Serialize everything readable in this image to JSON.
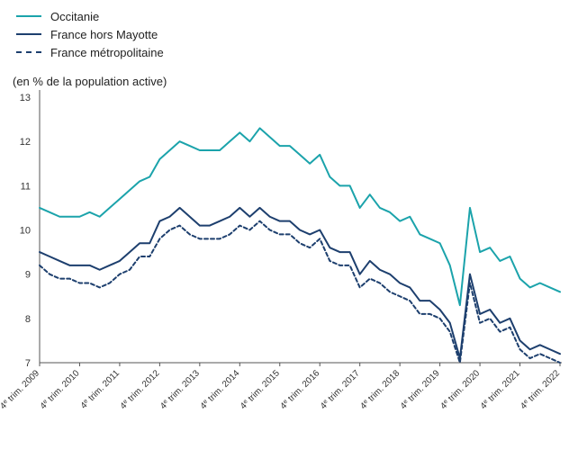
{
  "chart_data": {
    "type": "line",
    "ylabel": "(en % de la population active)",
    "ylim": [
      7,
      13
    ],
    "yticks": [
      7,
      8,
      9,
      10,
      11,
      12,
      13
    ],
    "grid": false,
    "legend_position": "top-left",
    "x": [
      "2009-Q4",
      "2010-Q1",
      "2010-Q2",
      "2010-Q3",
      "2010-Q4",
      "2011-Q1",
      "2011-Q2",
      "2011-Q3",
      "2011-Q4",
      "2012-Q1",
      "2012-Q2",
      "2012-Q3",
      "2012-Q4",
      "2013-Q1",
      "2013-Q2",
      "2013-Q3",
      "2013-Q4",
      "2014-Q1",
      "2014-Q2",
      "2014-Q3",
      "2014-Q4",
      "2015-Q1",
      "2015-Q2",
      "2015-Q3",
      "2015-Q4",
      "2016-Q1",
      "2016-Q2",
      "2016-Q3",
      "2016-Q4",
      "2017-Q1",
      "2017-Q2",
      "2017-Q3",
      "2017-Q4",
      "2018-Q1",
      "2018-Q2",
      "2018-Q3",
      "2018-Q4",
      "2019-Q1",
      "2019-Q2",
      "2019-Q3",
      "2019-Q4",
      "2020-Q1",
      "2020-Q2",
      "2020-Q3",
      "2020-Q4",
      "2021-Q1",
      "2021-Q2",
      "2021-Q3",
      "2021-Q4",
      "2022-Q1",
      "2022-Q2",
      "2022-Q3",
      "2022-Q4"
    ],
    "xtick_labels": [
      {
        "x": "2009-Q4",
        "pre": "4",
        "sup": "e",
        "post": " trim. 2009"
      },
      {
        "x": "2010-Q4",
        "pre": "4",
        "sup": "e",
        "post": " trim. 2010"
      },
      {
        "x": "2011-Q4",
        "pre": "4",
        "sup": "e",
        "post": " trim. 2011"
      },
      {
        "x": "2012-Q4",
        "pre": "4",
        "sup": "e",
        "post": " trim. 2012"
      },
      {
        "x": "2013-Q4",
        "pre": "4",
        "sup": "e",
        "post": " trim. 2013"
      },
      {
        "x": "2014-Q4",
        "pre": "4",
        "sup": "e",
        "post": " trim. 2014"
      },
      {
        "x": "2015-Q4",
        "pre": "4",
        "sup": "e",
        "post": " trim. 2015"
      },
      {
        "x": "2016-Q4",
        "pre": "4",
        "sup": "e",
        "post": " trim. 2016"
      },
      {
        "x": "2017-Q4",
        "pre": "4",
        "sup": "e",
        "post": " trim. 2017"
      },
      {
        "x": "2018-Q4",
        "pre": "4",
        "sup": "e",
        "post": " trim. 2018"
      },
      {
        "x": "2019-Q4",
        "pre": "4",
        "sup": "e",
        "post": " trim. 2019"
      },
      {
        "x": "2020-Q4",
        "pre": "4",
        "sup": "e",
        "post": " trim. 2020"
      },
      {
        "x": "2021-Q4",
        "pre": "4",
        "sup": "e",
        "post": " trim. 2021"
      },
      {
        "x": "2022-Q4",
        "pre": "4",
        "sup": "e",
        "post": " trim. 2022"
      }
    ],
    "series": [
      {
        "name": "Occitanie",
        "color": "#1ba3ab",
        "style": "solid",
        "values": [
          10.5,
          10.4,
          10.3,
          10.3,
          10.3,
          10.4,
          10.3,
          10.5,
          10.7,
          10.9,
          11.1,
          11.2,
          11.6,
          11.8,
          12.0,
          11.9,
          11.8,
          11.8,
          11.8,
          12.0,
          12.2,
          12.0,
          12.3,
          12.1,
          11.9,
          11.9,
          11.7,
          11.5,
          11.7,
          11.2,
          11.0,
          11.0,
          10.5,
          10.8,
          10.5,
          10.4,
          10.2,
          10.3,
          9.9,
          9.8,
          9.7,
          9.2,
          8.3,
          10.5,
          9.5,
          9.6,
          9.3,
          9.4,
          8.9,
          8.7,
          8.8,
          8.7,
          8.6
        ]
      },
      {
        "name": "France hors Mayotte",
        "color": "#1d3f6e",
        "style": "solid",
        "values": [
          9.5,
          9.4,
          9.3,
          9.2,
          9.2,
          9.2,
          9.1,
          9.2,
          9.3,
          9.5,
          9.7,
          9.7,
          10.2,
          10.3,
          10.5,
          10.3,
          10.1,
          10.1,
          10.2,
          10.3,
          10.5,
          10.3,
          10.5,
          10.3,
          10.2,
          10.2,
          10.0,
          9.9,
          10.0,
          9.6,
          9.5,
          9.5,
          9.0,
          9.3,
          9.1,
          9.0,
          8.8,
          8.7,
          8.4,
          8.4,
          8.2,
          7.9,
          7.1,
          9.0,
          8.1,
          8.2,
          7.9,
          8.0,
          7.5,
          7.3,
          7.4,
          7.3,
          7.2
        ]
      },
      {
        "name": "France métropolitaine",
        "color": "#1d3f6e",
        "style": "dashed",
        "values": [
          9.2,
          9.0,
          8.9,
          8.9,
          8.8,
          8.8,
          8.7,
          8.8,
          9.0,
          9.1,
          9.4,
          9.4,
          9.8,
          10.0,
          10.1,
          9.9,
          9.8,
          9.8,
          9.8,
          9.9,
          10.1,
          10.0,
          10.2,
          10.0,
          9.9,
          9.9,
          9.7,
          9.6,
          9.8,
          9.3,
          9.2,
          9.2,
          8.7,
          8.9,
          8.8,
          8.6,
          8.5,
          8.4,
          8.1,
          8.1,
          8.0,
          7.7,
          7.0,
          8.8,
          7.9,
          8.0,
          7.7,
          7.8,
          7.3,
          7.1,
          7.2,
          7.1,
          7.0
        ]
      }
    ]
  }
}
